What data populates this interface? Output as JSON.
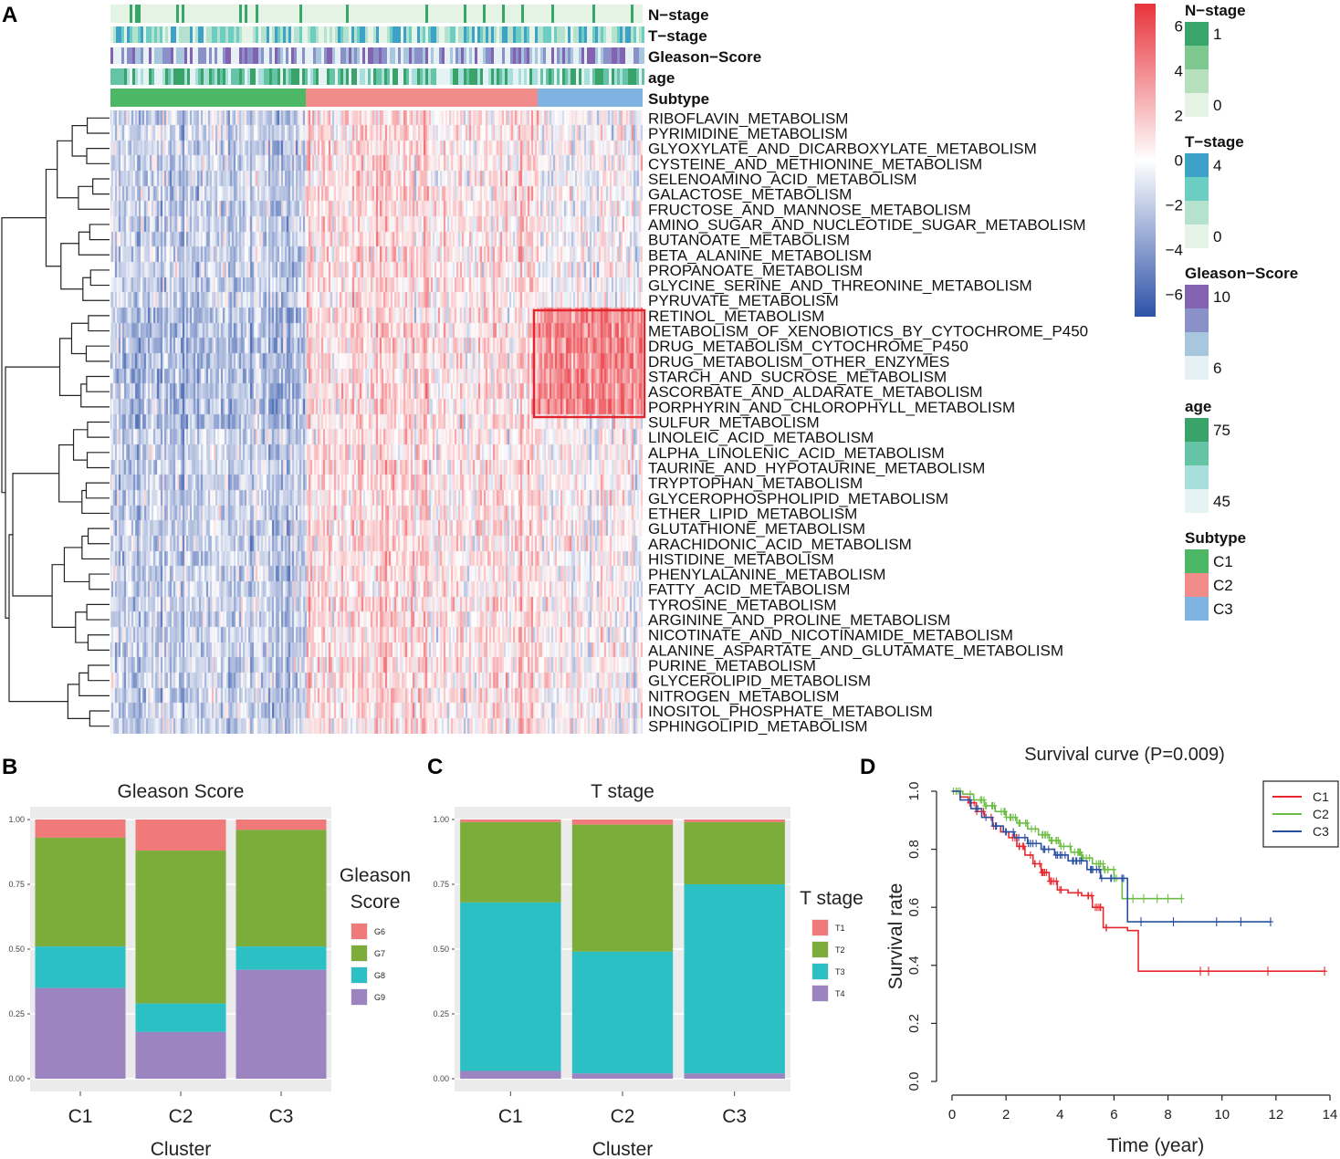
{
  "panels": {
    "a": "A",
    "b": "B",
    "c": "C",
    "d": "D"
  },
  "heatmap": {
    "annotation_labels": [
      "N−stage",
      "T−stage",
      "Gleason−Score",
      "age",
      "Subtype"
    ],
    "pathways": [
      "RIBOFLAVIN_METABOLISM",
      "PYRIMIDINE_METABOLISM",
      "GLYOXYLATE_AND_DICARBOXYLATE_METABOLISM",
      "CYSTEINE_AND_METHIONINE_METABOLISM",
      "SELENOAMINO_ACID_METABOLISM",
      "GALACTOSE_METABOLISM",
      "FRUCTOSE_AND_MANNOSE_METABOLISM",
      "AMINO_SUGAR_AND_NUCLEOTIDE_SUGAR_METABOLISM",
      "BUTANOATE_METABOLISM",
      "BETA_ALANINE_METABOLISM",
      "PROPANOATE_METABOLISM",
      "GLYCINE_SERINE_AND_THREONINE_METABOLISM",
      "PYRUVATE_METABOLISM",
      "RETINOL_METABOLISM",
      "METABOLISM_OF_XENOBIOTICS_BY_CYTOCHROME_P450",
      "DRUG_METABOLISM_CYTOCHROME_P450",
      "DRUG_METABOLISM_OTHER_ENZYMES",
      "STARCH_AND_SUCROSE_METABOLISM",
      "ASCORBATE_AND_ALDARATE_METABOLISM",
      "PORPHYRIN_AND_CHLOROPHYLL_METABOLISM",
      "SULFUR_METABOLISM",
      "LINOLEIC_ACID_METABOLISM",
      "ALPHA_LINOLENIC_ACID_METABOLISM",
      "TAURINE_AND_HYPOTAURINE_METABOLISM",
      "TRYPTOPHAN_METABOLISM",
      "GLYCEROPHOSPHOLIPID_METABOLISM",
      "ETHER_LIPID_METABOLISM",
      "GLUTATHIONE_METABOLISM",
      "ARACHIDONIC_ACID_METABOLISM",
      "HISTIDINE_METABOLISM",
      "PHENYLALANINE_METABOLISM",
      "FATTY_ACID_METABOLISM",
      "TYROSINE_METABOLISM",
      "ARGININE_AND_PROLINE_METABOLISM",
      "NICOTINATE_AND_NICOTINAMIDE_METABOLISM",
      "ALANINE_ASPARTATE_AND_GLUTAMATE_METABOLISM",
      "PURINE_METABOLISM",
      "GLYCEROLIPID_METABOLISM",
      "NITROGEN_METABOLISM",
      "INOSITOL_PHOSPHATE_METABOLISM",
      "SPHINGOLIPID_METABOLISM"
    ],
    "subtype_fractions": {
      "C1": 0.367,
      "C2": 0.436,
      "C3": 0.197
    },
    "highlight": {
      "first_row": 13,
      "last_row": 19,
      "subtype": "C3"
    },
    "color_scale": {
      "ticks": [
        "6",
        "4",
        "2",
        "0",
        "−2",
        "−4",
        "−6"
      ],
      "min": -7,
      "max": 7,
      "low": "#2e52a8",
      "mid": "#ffffff",
      "high": "#e8333b"
    },
    "legends": [
      {
        "title": "N−stage",
        "colors": [
          "#3aa56a",
          "#7ec88f",
          "#b6dfbb",
          "#e5f3e5"
        ],
        "labels": [
          "1",
          "0"
        ]
      },
      {
        "title": "T−stage",
        "colors": [
          "#3ea2c8",
          "#6ccdc2",
          "#b4e2cf",
          "#e6f4e7"
        ],
        "labels": [
          "4",
          "0"
        ]
      },
      {
        "title": "Gleason−Score",
        "colors": [
          "#8362b2",
          "#8a90c8",
          "#a9c6df",
          "#e6f1f6"
        ],
        "labels": [
          "10",
          "6"
        ]
      },
      {
        "title": "age",
        "colors": [
          "#3aa36a",
          "#66c4a6",
          "#a8dedb",
          "#e5f3f4"
        ],
        "labels": [
          "75",
          "45"
        ]
      },
      {
        "title": "Subtype",
        "colors": [
          "#4cb865",
          "#f28c8a",
          "#7fb3e2"
        ],
        "labels": [
          "C1",
          "C2",
          "C3"
        ]
      }
    ],
    "subtype_colors": {
      "C1": "#4cb865",
      "C2": "#f28c8a",
      "C3": "#7fb3e2"
    }
  },
  "chart_data": [
    {
      "type": "bar",
      "stacked": true,
      "title": "Gleason Score",
      "xlabel": "Cluster",
      "ylabel": "",
      "categories": [
        "C1",
        "C2",
        "C3"
      ],
      "ylim": [
        0,
        1
      ],
      "yticks": [
        "0.00",
        "0.25",
        "0.50",
        "0.75",
        "1.00"
      ],
      "legend_title": [
        "Gleason",
        "Score"
      ],
      "series": [
        {
          "name": "G6",
          "color": "#f07a7a",
          "values": [
            0.07,
            0.12,
            0.04
          ]
        },
        {
          "name": "G7",
          "color": "#7cad3b",
          "values": [
            0.42,
            0.59,
            0.45
          ]
        },
        {
          "name": "G8",
          "color": "#2cbfc4",
          "values": [
            0.16,
            0.11,
            0.09
          ]
        },
        {
          "name": "G9",
          "color": "#9b84bf",
          "values": [
            0.35,
            0.18,
            0.42
          ]
        }
      ]
    },
    {
      "type": "bar",
      "stacked": true,
      "title": "T stage",
      "xlabel": "Cluster",
      "ylabel": "",
      "categories": [
        "C1",
        "C2",
        "C3"
      ],
      "ylim": [
        0,
        1
      ],
      "yticks": [
        "0.00",
        "0.25",
        "0.50",
        "0.75",
        "1.00"
      ],
      "legend_title": [
        "T stage"
      ],
      "series": [
        {
          "name": "T1",
          "color": "#f07a7a",
          "values": [
            0.01,
            0.02,
            0.01
          ]
        },
        {
          "name": "T2",
          "color": "#7cad3b",
          "values": [
            0.31,
            0.49,
            0.24
          ]
        },
        {
          "name": "T3",
          "color": "#2cbfc4",
          "values": [
            0.65,
            0.47,
            0.73
          ]
        },
        {
          "name": "T4",
          "color": "#9b84bf",
          "values": [
            0.03,
            0.02,
            0.02
          ]
        }
      ]
    },
    {
      "type": "line",
      "step": true,
      "title": "Survival curve (P=0.009)",
      "xlabel": "Time (year)",
      "ylabel": "Survival rate",
      "xlim": [
        0,
        14
      ],
      "ylim": [
        0,
        1
      ],
      "xticks": [
        "0",
        "2",
        "4",
        "6",
        "8",
        "10",
        "12",
        "14"
      ],
      "yticks": [
        "0.0",
        "0.2",
        "0.4",
        "0.6",
        "0.8",
        "1.0"
      ],
      "legend_position": "top-right",
      "series": [
        {
          "name": "C1",
          "color": "#e8262d",
          "x": [
            0,
            0.3,
            0.6,
            0.9,
            1.2,
            1.5,
            1.8,
            2.1,
            2.4,
            2.7,
            3.0,
            3.3,
            3.6,
            3.9,
            4.3,
            4.8,
            5.2,
            5.6,
            6.1,
            6.5,
            6.9,
            13.8
          ],
          "y": [
            1.0,
            0.98,
            0.96,
            0.93,
            0.91,
            0.88,
            0.86,
            0.84,
            0.81,
            0.78,
            0.75,
            0.72,
            0.69,
            0.66,
            0.65,
            0.64,
            0.6,
            0.53,
            0.53,
            0.52,
            0.38,
            0.38
          ]
        },
        {
          "name": "C2",
          "color": "#6dbd45",
          "x": [
            0,
            0.4,
            0.8,
            1.2,
            1.6,
            2.0,
            2.4,
            2.8,
            3.2,
            3.6,
            4.0,
            4.4,
            4.8,
            5.2,
            5.6,
            6.0,
            6.3,
            8.5
          ],
          "y": [
            1.0,
            0.99,
            0.97,
            0.95,
            0.93,
            0.91,
            0.89,
            0.87,
            0.85,
            0.83,
            0.81,
            0.79,
            0.77,
            0.75,
            0.73,
            0.7,
            0.63,
            0.63
          ]
        },
        {
          "name": "C3",
          "color": "#2850a0",
          "x": [
            0,
            0.3,
            0.7,
            1.1,
            1.5,
            1.9,
            2.3,
            2.8,
            3.3,
            3.8,
            4.3,
            5.0,
            5.5,
            6.0,
            6.5,
            11.8
          ],
          "y": [
            1.0,
            0.97,
            0.94,
            0.91,
            0.88,
            0.86,
            0.84,
            0.82,
            0.8,
            0.78,
            0.76,
            0.73,
            0.7,
            0.7,
            0.55,
            0.55
          ]
        }
      ]
    }
  ]
}
